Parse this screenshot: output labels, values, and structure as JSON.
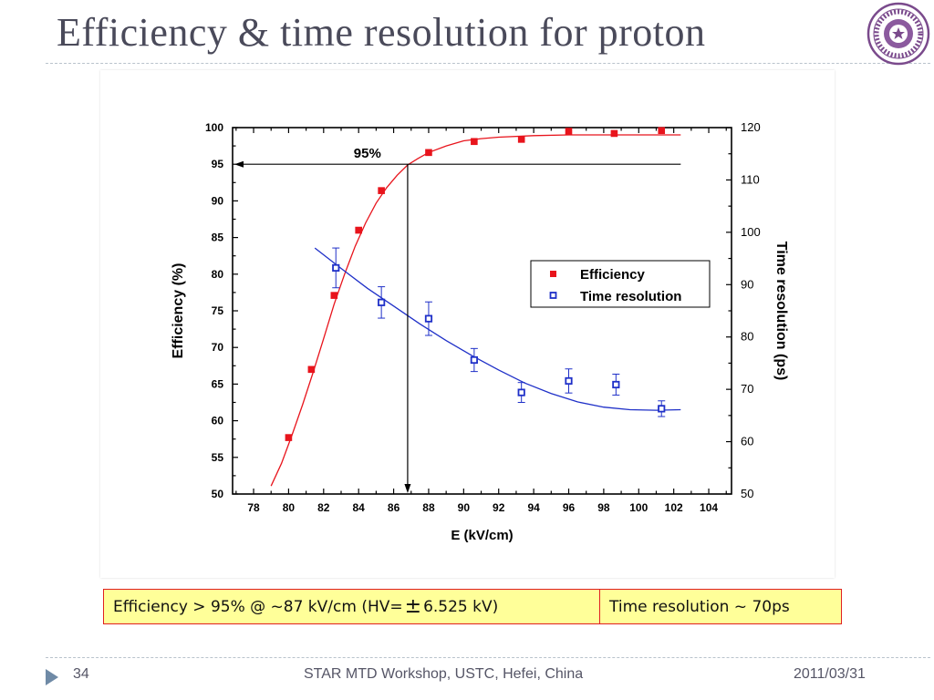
{
  "slide": {
    "title": "Efficiency & time resolution for proton",
    "note_left_prefix": "Efficiency > 95% @ ~87 kV/cm (HV= ",
    "note_left_pm": "±",
    "note_left_suffix": "6.525 kV)",
    "note_right": "Time resolution ~ 70ps",
    "footer": {
      "page": "34",
      "center": "STAR MTD Workshop, USTC, Hefei, China",
      "date": "2011/03/31"
    },
    "colors": {
      "title": "#4a4a5a",
      "note_bg": "#ffff99",
      "note_border": "#e02020",
      "divider": "#b9c3cc"
    }
  },
  "chart_data": {
    "type": "scatter",
    "xlabel": "E (kV/cm)",
    "ylabel": "Efficiency (%)",
    "y2label": "Time resolution (ps)",
    "xlim": [
      76.8,
      105.3
    ],
    "ylim": [
      50,
      100
    ],
    "y2lim": [
      50,
      120
    ],
    "xticks": [
      78,
      80,
      82,
      84,
      86,
      88,
      90,
      92,
      94,
      96,
      98,
      100,
      102,
      104
    ],
    "yticks": [
      50,
      55,
      60,
      65,
      70,
      75,
      80,
      85,
      90,
      95,
      100
    ],
    "y2ticks": [
      50,
      60,
      70,
      80,
      90,
      100,
      110,
      120
    ],
    "annotation": {
      "text": "95%",
      "level": 95,
      "x_cross": 86.8
    },
    "legend": {
      "position": "center-right",
      "entries": [
        "Efficiency",
        "Time resolution"
      ]
    },
    "series": [
      {
        "name": "Efficiency",
        "axis": "left",
        "color": "#e8141c",
        "marker": "filled-square",
        "x": [
          80.0,
          81.3,
          82.6,
          84.0,
          85.3,
          88.0,
          90.6,
          93.3,
          96.0,
          98.6,
          101.3
        ],
        "y": [
          57.7,
          67.0,
          77.1,
          86.0,
          91.4,
          96.6,
          98.1,
          98.4,
          99.5,
          99.2,
          99.6
        ],
        "fit": {
          "x": [
            79.0,
            79.6,
            80.2,
            80.8,
            81.4,
            82.0,
            82.6,
            83.2,
            83.8,
            84.4,
            85.0,
            85.6,
            86.2,
            86.8,
            87.4,
            88.0,
            89.0,
            90.0,
            91.0,
            92.0,
            94.0,
            96.0,
            99.0,
            102.4
          ],
          "y": [
            51.1,
            54.2,
            58.1,
            62.2,
            66.6,
            71.2,
            75.9,
            80.0,
            83.8,
            87.0,
            89.7,
            91.8,
            93.5,
            94.9,
            95.8,
            96.6,
            97.5,
            98.2,
            98.5,
            98.7,
            98.9,
            99.0,
            99.0,
            99.0
          ]
        }
      },
      {
        "name": "Time resolution",
        "axis": "right",
        "color": "#1f30c8",
        "marker": "open-square",
        "x": [
          82.7,
          85.3,
          88.0,
          90.6,
          93.3,
          96.0,
          98.7,
          101.3
        ],
        "y": [
          93.2,
          86.6,
          83.5,
          75.6,
          69.4,
          71.6,
          70.9,
          66.3
        ],
        "err": [
          3.8,
          3.0,
          3.2,
          2.2,
          1.9,
          2.3,
          2.0,
          1.5
        ],
        "fit": {
          "x": [
            81.5,
            83.0,
            84.5,
            86.0,
            87.5,
            89.0,
            90.5,
            92.0,
            93.5,
            95.0,
            96.5,
            98.0,
            99.5,
            101.0,
            102.4
          ],
          "y": [
            97.0,
            93.1,
            89.3,
            85.9,
            82.5,
            79.3,
            76.4,
            73.7,
            71.2,
            69.2,
            67.6,
            66.6,
            66.1,
            66.0,
            66.1
          ]
        }
      }
    ]
  }
}
